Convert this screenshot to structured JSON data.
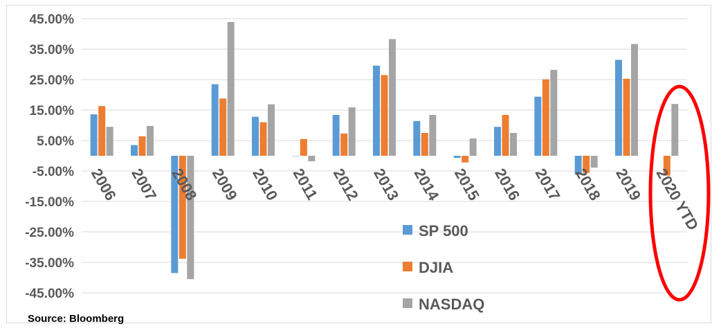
{
  "chart_data": {
    "type": "bar",
    "categories": [
      "2006",
      "2007",
      "2008",
      "2009",
      "2010",
      "2011",
      "2012",
      "2013",
      "2014",
      "2015",
      "2016",
      "2017",
      "2018",
      "2019",
      "2020 YTD"
    ],
    "series": [
      {
        "name": "SP 500",
        "color": "#5b9bd5",
        "values": [
          13.6,
          3.5,
          -38.5,
          23.5,
          12.8,
          0.0,
          13.4,
          29.6,
          11.4,
          -0.7,
          9.5,
          19.4,
          -6.2,
          31.5,
          null
        ]
      },
      {
        "name": "DJIA",
        "color": "#ed7d31",
        "values": [
          16.3,
          6.4,
          -33.8,
          18.8,
          11.0,
          5.5,
          7.3,
          26.5,
          7.5,
          -2.2,
          13.4,
          25.1,
          -5.6,
          25.3,
          -6.5
        ]
      },
      {
        "name": "NASDAQ",
        "color": "#a5a5a5",
        "values": [
          9.5,
          9.8,
          -40.5,
          43.9,
          16.9,
          -1.8,
          15.9,
          38.3,
          13.4,
          5.7,
          7.5,
          28.2,
          -3.9,
          36.7,
          17.0
        ]
      }
    ],
    "yticks": [
      "45.00%",
      "35.00%",
      "25.00%",
      "15.00%",
      "5.00%",
      "-5.00%",
      "-15.00%",
      "-25.00%",
      "-35.00%",
      "-45.00%"
    ],
    "ylim": [
      -45,
      45
    ],
    "grid": true,
    "legend_position": "bottom-center",
    "annotation": "red ellipse around 2020 YTD",
    "annotation_color": "#ff0000",
    "source_note": "Source: Bloomberg"
  }
}
